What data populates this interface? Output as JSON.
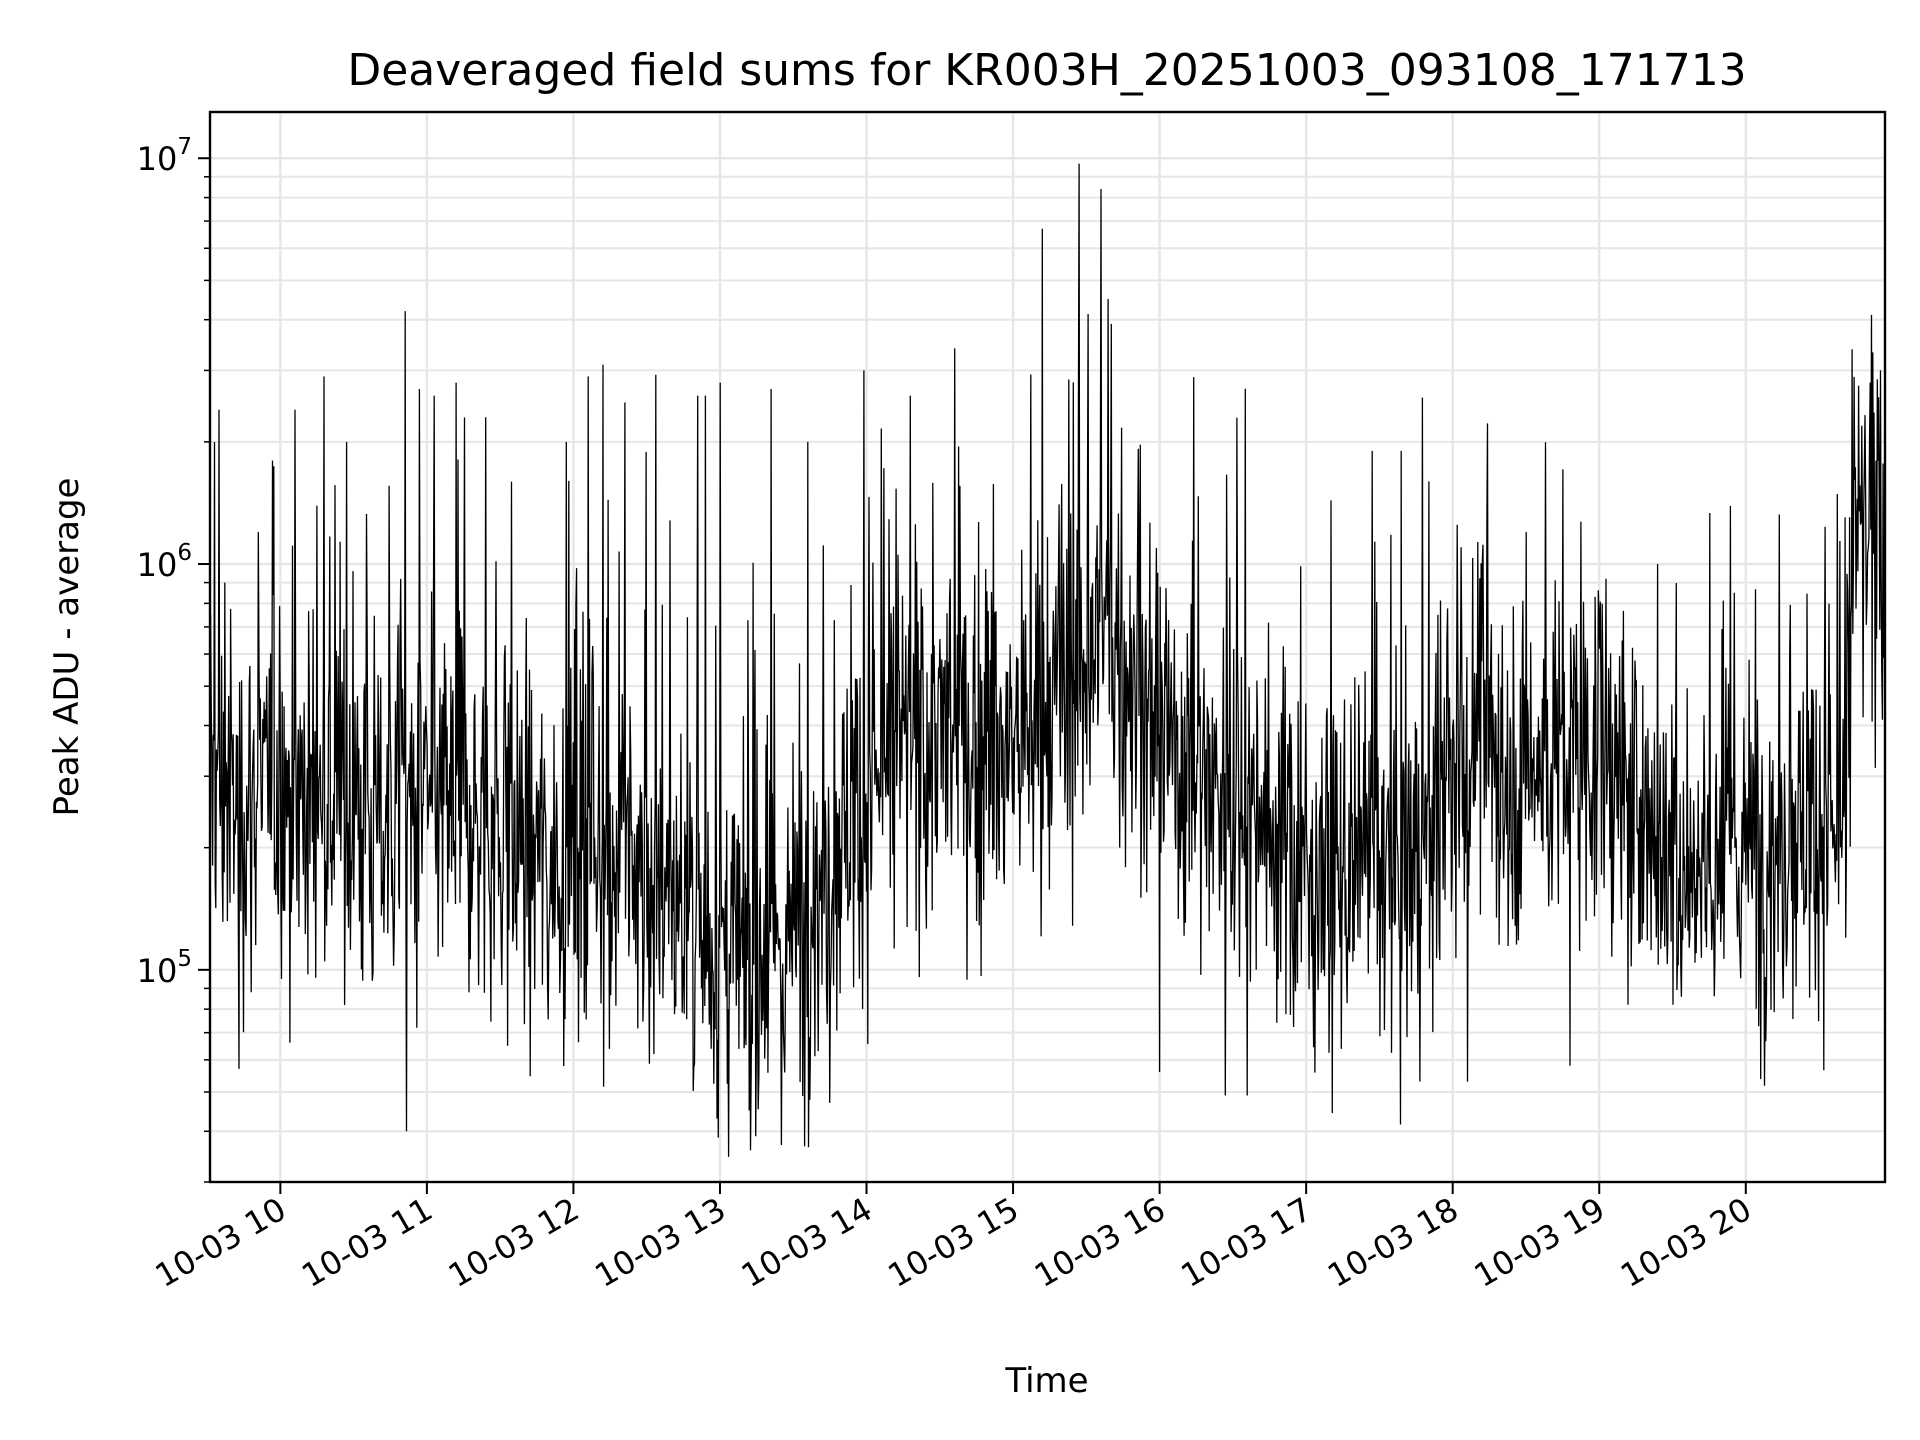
{
  "chart_data": {
    "type": "line",
    "title": "Deaveraged field sums for KR003H_20251003_093108_171713",
    "xlabel": "Time",
    "ylabel": "Peak ADU - average",
    "yscale": "log",
    "ylim": [
      30000,
      13000000
    ],
    "xlim_hours": [
      9.52,
      20.95
    ],
    "grid": true,
    "line_color": "#000000",
    "x_ticks": [
      {
        "hour": 10,
        "label": "10-03 10"
      },
      {
        "hour": 11,
        "label": "10-03 11"
      },
      {
        "hour": 12,
        "label": "10-03 12"
      },
      {
        "hour": 13,
        "label": "10-03 13"
      },
      {
        "hour": 14,
        "label": "10-03 14"
      },
      {
        "hour": 15,
        "label": "10-03 15"
      },
      {
        "hour": 16,
        "label": "10-03 16"
      },
      {
        "hour": 17,
        "label": "10-03 17"
      },
      {
        "hour": 18,
        "label": "10-03 18"
      },
      {
        "hour": 19,
        "label": "10-03 19"
      },
      {
        "hour": 20,
        "label": "10-03 20"
      }
    ],
    "y_ticks": [
      {
        "value": 100000,
        "base": "10",
        "exp": "5"
      },
      {
        "value": 1000000,
        "base": "10",
        "exp": "6"
      },
      {
        "value": 10000000,
        "base": "10",
        "exp": "7"
      }
    ],
    "series": [
      {
        "name": "deaveraged field sum",
        "baseline": [
          [
            9.52,
            300000
          ],
          [
            9.7,
            250000
          ],
          [
            10.0,
            280000
          ],
          [
            10.3,
            260000
          ],
          [
            10.6,
            230000
          ],
          [
            10.9,
            250000
          ],
          [
            11.2,
            260000
          ],
          [
            11.5,
            220000
          ],
          [
            11.8,
            190000
          ],
          [
            12.1,
            200000
          ],
          [
            12.4,
            180000
          ],
          [
            12.7,
            150000
          ],
          [
            13.0,
            110000
          ],
          [
            13.3,
            100000
          ],
          [
            13.6,
            140000
          ],
          [
            13.9,
            250000
          ],
          [
            14.2,
            330000
          ],
          [
            14.5,
            380000
          ],
          [
            14.8,
            330000
          ],
          [
            15.1,
            380000
          ],
          [
            15.4,
            450000
          ],
          [
            15.6,
            700000
          ],
          [
            15.8,
            500000
          ],
          [
            16.1,
            350000
          ],
          [
            16.4,
            280000
          ],
          [
            16.7,
            250000
          ],
          [
            17.0,
            170000
          ],
          [
            17.3,
            170000
          ],
          [
            17.6,
            160000
          ],
          [
            17.9,
            240000
          ],
          [
            18.2,
            400000
          ],
          [
            18.4,
            300000
          ],
          [
            18.7,
            330000
          ],
          [
            19.0,
            350000
          ],
          [
            19.3,
            220000
          ],
          [
            19.6,
            180000
          ],
          [
            19.9,
            200000
          ],
          [
            20.2,
            200000
          ],
          [
            20.5,
            250000
          ],
          [
            20.65,
            200000
          ],
          [
            20.75,
            1100000
          ],
          [
            20.95,
            1200000
          ]
        ],
        "spikes": [
          [
            9.55,
            2000000
          ],
          [
            9.58,
            2400000
          ],
          [
            9.62,
            900000
          ],
          [
            9.72,
            57000
          ],
          [
            9.85,
            1200000
          ],
          [
            10.1,
            2400000
          ],
          [
            10.3,
            2900000
          ],
          [
            10.45,
            2000000
          ],
          [
            10.85,
            4200000
          ],
          [
            10.86,
            40000
          ],
          [
            10.95,
            2700000
          ],
          [
            11.05,
            2600000
          ],
          [
            11.2,
            2800000
          ],
          [
            11.4,
            2300000
          ],
          [
            11.55,
            65000
          ],
          [
            11.95,
            2000000
          ],
          [
            12.1,
            2900000
          ],
          [
            12.2,
            3100000
          ],
          [
            12.35,
            2500000
          ],
          [
            12.55,
            62000
          ],
          [
            12.85,
            2600000
          ],
          [
            12.9,
            2600000
          ],
          [
            12.98,
            43000
          ],
          [
            13.0,
            2800000
          ],
          [
            13.2,
            45000
          ],
          [
            13.35,
            2700000
          ],
          [
            13.42,
            37000
          ],
          [
            13.6,
            2000000
          ],
          [
            13.75,
            47000
          ],
          [
            13.98,
            3000000
          ],
          [
            14.3,
            2600000
          ],
          [
            14.6,
            3400000
          ],
          [
            15.2,
            6700000
          ],
          [
            15.45,
            9700000
          ],
          [
            15.6,
            8400000
          ],
          [
            15.65,
            4500000
          ],
          [
            15.85,
            1200000
          ],
          [
            16.0,
            56000
          ],
          [
            16.45,
            49000
          ],
          [
            16.6,
            49000
          ],
          [
            17.45,
            1900000
          ],
          [
            17.65,
            1900000
          ],
          [
            18.1,
            53000
          ],
          [
            18.5,
            1200000
          ],
          [
            18.8,
            58000
          ],
          [
            19.4,
            1000000
          ],
          [
            19.92,
            850000
          ],
          [
            20.3,
            600000
          ],
          [
            20.68,
            120000
          ],
          [
            20.85,
            2800000
          ],
          [
            20.92,
            3000000
          ]
        ]
      }
    ]
  }
}
